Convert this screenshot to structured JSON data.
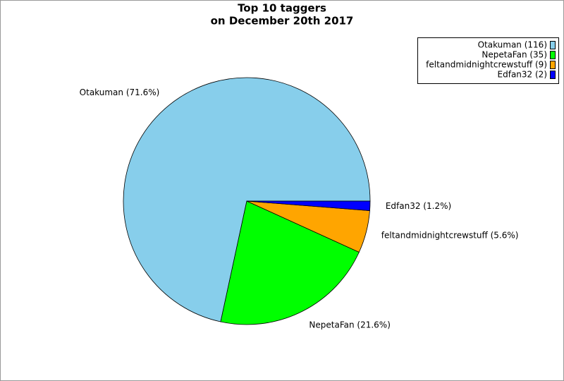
{
  "chart_data": {
    "type": "pie",
    "title": [
      "Top 10 taggers",
      "on December 20th 2017"
    ],
    "categories": [
      "Otakuman",
      "NepetaFan",
      "feltandmidnightcrewstuff",
      "Edfan32"
    ],
    "values": [
      116,
      35,
      9,
      2
    ],
    "colors": [
      "#87ceeb",
      "#00ff00",
      "#ffa500",
      "#0000ff"
    ],
    "legend_labels": [
      "Otakuman (116)",
      "NepetaFan (35)",
      "feltandmidnightcrewstuff (9)",
      "Edfan32 (2)"
    ],
    "slice_labels": [
      "Otakuman (71.6%)",
      "NepetaFan (21.6%)",
      "feltandmidnightcrewstuff (5.6%)",
      "Edfan32 (1.2%)"
    ],
    "legend": "top-right"
  }
}
